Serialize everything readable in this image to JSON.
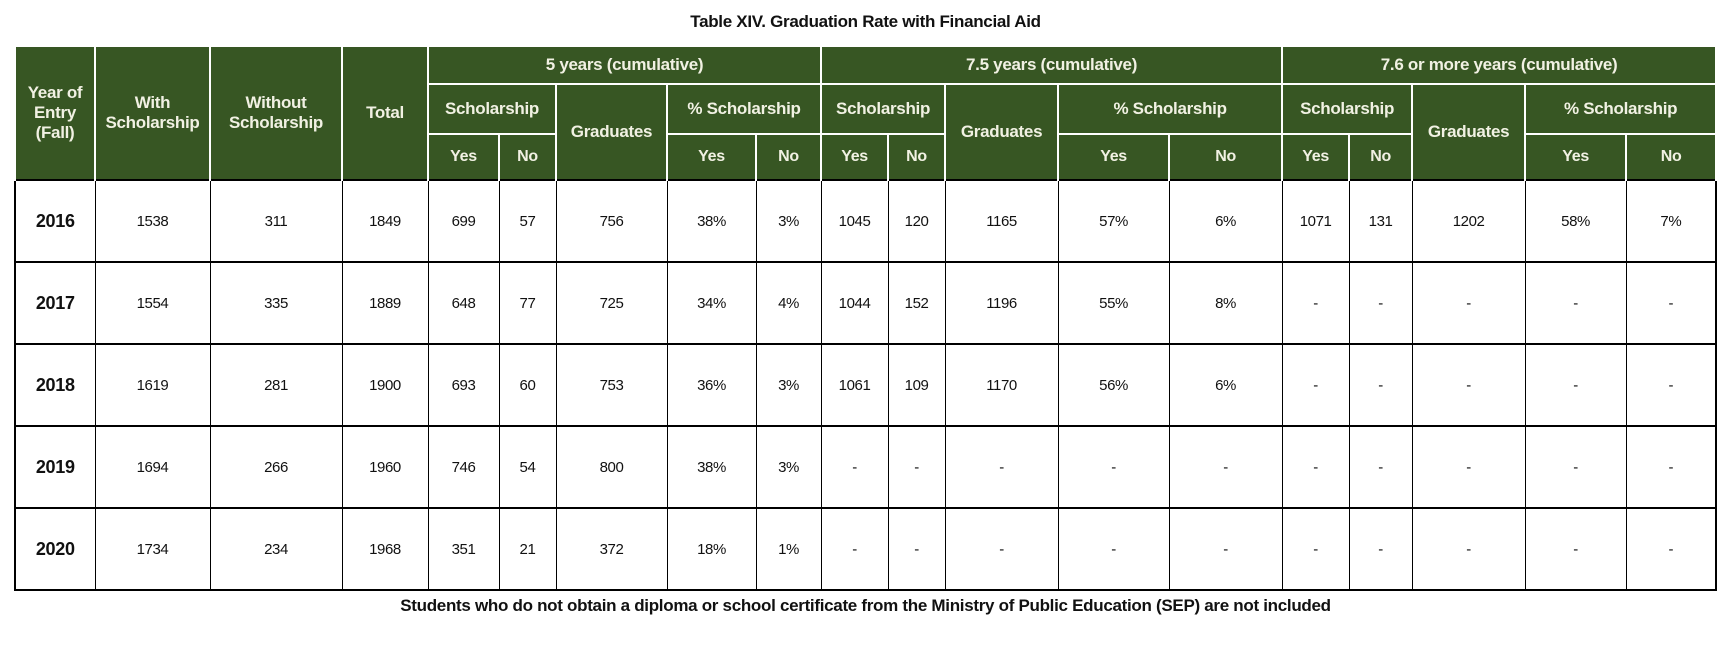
{
  "title": "Table XIV. Graduation Rate with Financial Aid",
  "footnote": "Students who do not obtain a diploma or school certificate from the Ministry of Public Education (SEP) are not included",
  "colors": {
    "header_bg": "#375623",
    "header_text": "#f1f1e3",
    "grid": "#000000",
    "body_text": "#111111"
  },
  "header": {
    "year_of_entry": "Year of Entry (Fall)",
    "with_scholarship": "With Scholarship",
    "without_scholarship": "Without Scholarship",
    "total": "Total",
    "groups": [
      {
        "label": "5 years (cumulative)"
      },
      {
        "label": "7.5 years (cumulative)"
      },
      {
        "label": "7.6 or more years (cumulative)"
      }
    ],
    "scholarship": "Scholarship",
    "graduates": "Graduates",
    "pct_scholarship": "% Scholarship",
    "yes": "Yes",
    "no": "No"
  },
  "rows": [
    {
      "year": "2016",
      "values": [
        "1538",
        "311",
        "1849",
        "699",
        "57",
        "756",
        "38%",
        "3%",
        "1045",
        "120",
        "1165",
        "57%",
        "6%",
        "1071",
        "131",
        "1202",
        "58%",
        "7%"
      ]
    },
    {
      "year": "2017",
      "values": [
        "1554",
        "335",
        "1889",
        "648",
        "77",
        "725",
        "34%",
        "4%",
        "1044",
        "152",
        "1196",
        "55%",
        "8%",
        "-",
        "-",
        "-",
        "-",
        "-"
      ]
    },
    {
      "year": "2018",
      "values": [
        "1619",
        "281",
        "1900",
        "693",
        "60",
        "753",
        "36%",
        "3%",
        "1061",
        "109",
        "1170",
        "56%",
        "6%",
        "-",
        "-",
        "-",
        "-",
        "-"
      ]
    },
    {
      "year": "2019",
      "values": [
        "1694",
        "266",
        "1960",
        "746",
        "54",
        "800",
        "38%",
        "3%",
        "-",
        "-",
        "-",
        "-",
        "-",
        "-",
        "-",
        "-",
        "-",
        "-"
      ]
    },
    {
      "year": "2020",
      "values": [
        "1734",
        "234",
        "1968",
        "351",
        "21",
        "372",
        "18%",
        "1%",
        "-",
        "-",
        "-",
        "-",
        "-",
        "-",
        "-",
        "-",
        "-",
        "-"
      ]
    }
  ]
}
